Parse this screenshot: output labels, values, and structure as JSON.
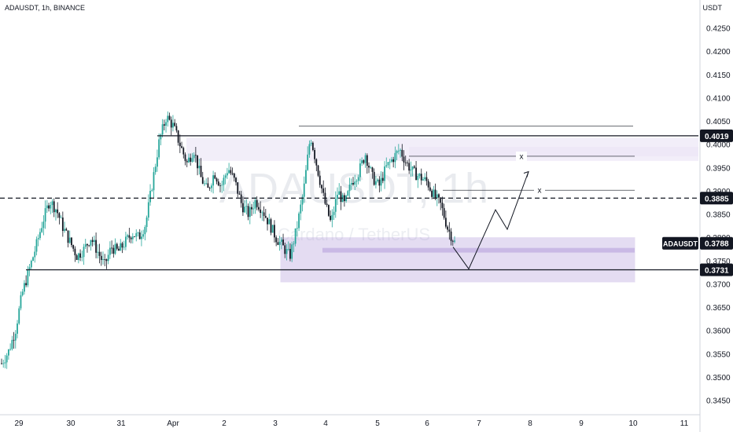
{
  "header": {
    "symbol_info": "ADAUSDT, 1h, BINANCE",
    "axis_title": "USDT"
  },
  "watermark": {
    "symbol": "ADAUSDT, 1h",
    "description": "Cardano / TetherUS"
  },
  "colors": {
    "up": "#26a69a",
    "down": "#131722",
    "zone": "#b39ddb",
    "zone_light": "#ede7f6",
    "line": "#131722"
  },
  "chart_data": {
    "type": "candlestick",
    "y_axis": {
      "ticks": [
        "0.4250",
        "0.4200",
        "0.4150",
        "0.4100",
        "0.4050",
        "0.4000",
        "0.3950",
        "0.3900",
        "0.3850",
        "0.3800",
        "0.3750",
        "0.3700",
        "0.3650",
        "0.3600",
        "0.3550",
        "0.3500",
        "0.3450"
      ],
      "range": [
        0.3425,
        0.43
      ]
    },
    "x_axis": {
      "labels": [
        "29",
        "30",
        "31",
        "Apr",
        "2",
        "3",
        "4",
        "5",
        "6",
        "7",
        "8",
        "9",
        "10",
        "11"
      ]
    },
    "price_labels": [
      {
        "text": "0.4019",
        "value": 0.4019,
        "style": "dark"
      },
      {
        "text": "0.3885",
        "value": 0.3885,
        "style": "dark"
      },
      {
        "text": "0.3788",
        "value": 0.3788,
        "style": "dark"
      },
      {
        "text": "0.3731",
        "value": 0.3731,
        "style": "dark"
      }
    ],
    "last_price_symbol": "ADAUSDT",
    "levels": [
      {
        "value": 0.4019,
        "style": "solid"
      },
      {
        "value": 0.3885,
        "style": "dashed"
      },
      {
        "value": 0.3731,
        "style": "solid"
      }
    ],
    "annotations": [
      {
        "text": "x"
      },
      {
        "text": "x"
      }
    ],
    "series_path": [
      0.353,
      0.3555,
      0.36,
      0.368,
      0.373,
      0.378,
      0.3835,
      0.388,
      0.386,
      0.382,
      0.379,
      0.376,
      0.3775,
      0.38,
      0.377,
      0.374,
      0.378,
      0.377,
      0.379,
      0.381,
      0.38,
      0.383,
      0.392,
      0.401,
      0.406,
      0.404,
      0.4,
      0.396,
      0.399,
      0.393,
      0.39,
      0.394,
      0.391,
      0.395,
      0.392,
      0.387,
      0.385,
      0.388,
      0.386,
      0.383,
      0.38,
      0.378,
      0.376,
      0.382,
      0.39,
      0.402,
      0.395,
      0.388,
      0.383,
      0.39,
      0.387,
      0.392,
      0.394,
      0.398,
      0.393,
      0.391,
      0.395,
      0.397,
      0.399,
      0.396,
      0.394,
      0.393,
      0.392,
      0.389,
      0.387,
      0.382,
      0.379
    ]
  }
}
